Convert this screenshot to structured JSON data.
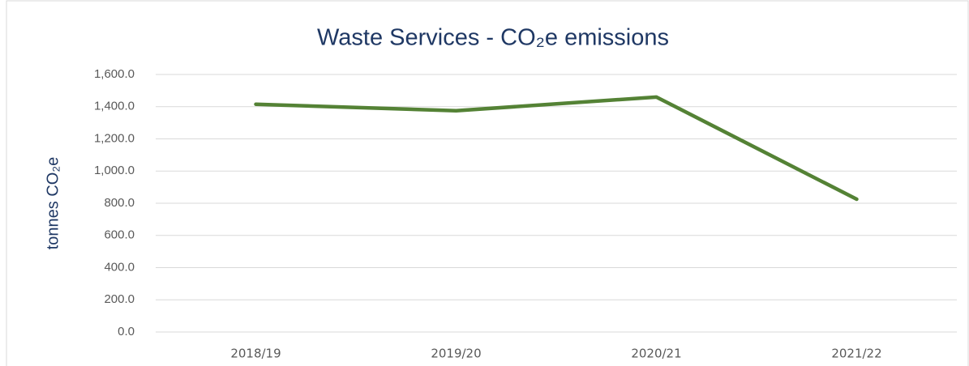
{
  "chart_data": {
    "type": "line",
    "title": "Waste Services - CO₂e emissions",
    "y_label": "tonnes CO₂e",
    "categories": [
      "2018/19",
      "2019/20",
      "2020/21",
      "2021/22"
    ],
    "series": [
      {
        "name": "CO₂e emissions",
        "color": "#548235",
        "values": [
          1415,
          1375,
          1460,
          825
        ]
      }
    ],
    "ylim": [
      0,
      1600
    ],
    "yticks": [
      {
        "value": 0,
        "label": "0.0"
      },
      {
        "value": 200,
        "label": "200.0"
      },
      {
        "value": 400,
        "label": "400.0"
      },
      {
        "value": 600,
        "label": "600.0"
      },
      {
        "value": 800,
        "label": "800.0"
      },
      {
        "value": 1000,
        "label": "1,000.0"
      },
      {
        "value": 1200,
        "label": "1,200.0"
      },
      {
        "value": 1400,
        "label": "1,400.0"
      },
      {
        "value": 1600,
        "label": "1,600.0"
      }
    ],
    "grid": true
  }
}
